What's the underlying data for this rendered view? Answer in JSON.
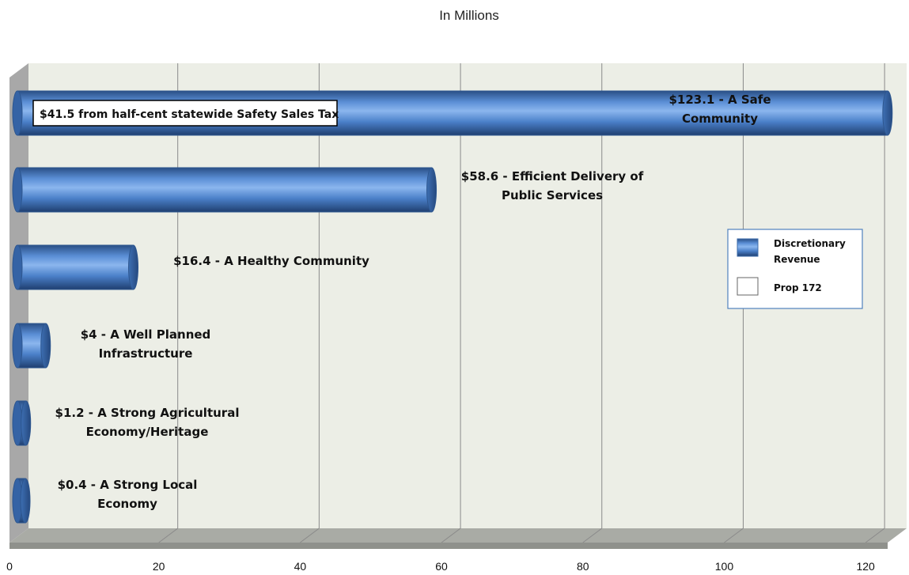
{
  "chart_data": {
    "type": "bar",
    "orientation": "horizontal",
    "title": "In Millions",
    "xlim": [
      0,
      125
    ],
    "x_ticks": [
      0,
      20,
      40,
      60,
      80,
      100,
      120
    ],
    "grid": true,
    "categories": [
      "A Safe Community",
      "Efficient Delivery of Public Services",
      "A Healthy Community",
      "A Well Planned Infrastructure",
      "A Strong Agricultural Economy/Heritage",
      "A Strong Local Economy"
    ],
    "series": [
      {
        "name": "Discretionary Revenue",
        "values": [
          123.1,
          58.6,
          16.4,
          4,
          1.2,
          0.4
        ],
        "color": "#4f81bd"
      },
      {
        "name": "Prop 172",
        "values": [
          null,
          null,
          null,
          null,
          null,
          null
        ],
        "color": "#ffffff"
      }
    ],
    "data_labels": [
      [
        "$123.1 -  A Safe",
        "Community"
      ],
      [
        "$58.6 - Efficient Delivery of",
        "Public Services"
      ],
      [
        "$16.4 - A Healthy Community"
      ],
      [
        "$4 - A Well Planned",
        "Infrastructure"
      ],
      [
        "$1.2 - A Strong Agricultural",
        "Economy/Heritage"
      ],
      [
        "$0.4 - A Strong Local",
        "Economy"
      ]
    ],
    "annotation": "$41.5 from half-cent statewide Safety Sales Tax",
    "legend": {
      "position": "right",
      "items": [
        "Discretionary\nRevenue",
        "Prop 172"
      ]
    }
  }
}
